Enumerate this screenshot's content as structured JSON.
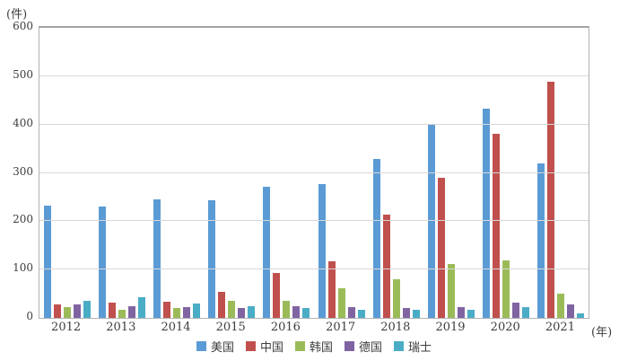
{
  "units": {
    "y_unit": "(件)",
    "x_unit": "(年)"
  },
  "axis_colors": {
    "gridline": "#d8d8d8",
    "border": "#b3b3b3",
    "text": "#3d3d3d"
  },
  "chart_data": {
    "type": "bar",
    "title": "",
    "categories": [
      "2012",
      "2013",
      "2014",
      "2015",
      "2016",
      "2017",
      "2018",
      "2019",
      "2020",
      "2021"
    ],
    "series": [
      {
        "name": "美国",
        "color": "#5b9bd5",
        "values": [
          233,
          231,
          246,
          243,
          272,
          277,
          328,
          400,
          432,
          320
        ]
      },
      {
        "name": "中国",
        "color": "#c0504d",
        "values": [
          27,
          31,
          33,
          53,
          93,
          117,
          213,
          290,
          380,
          489
        ]
      },
      {
        "name": "韩国",
        "color": "#9bbb59",
        "values": [
          22,
          17,
          20,
          35,
          35,
          62,
          79,
          112,
          118,
          50
        ]
      },
      {
        "name": "德国",
        "color": "#8064a2",
        "values": [
          28,
          24,
          23,
          20,
          25,
          23,
          20,
          23,
          31,
          27
        ]
      },
      {
        "name": "瑞士",
        "color": "#4bacc6",
        "values": [
          36,
          42,
          29,
          25,
          20,
          17,
          16,
          17,
          22,
          9
        ]
      }
    ],
    "ylabel": "(件)",
    "xlabel": "(年)",
    "ylim": [
      0,
      600
    ],
    "ytick_interval": 100,
    "grid": true,
    "legend_position": "bottom"
  }
}
